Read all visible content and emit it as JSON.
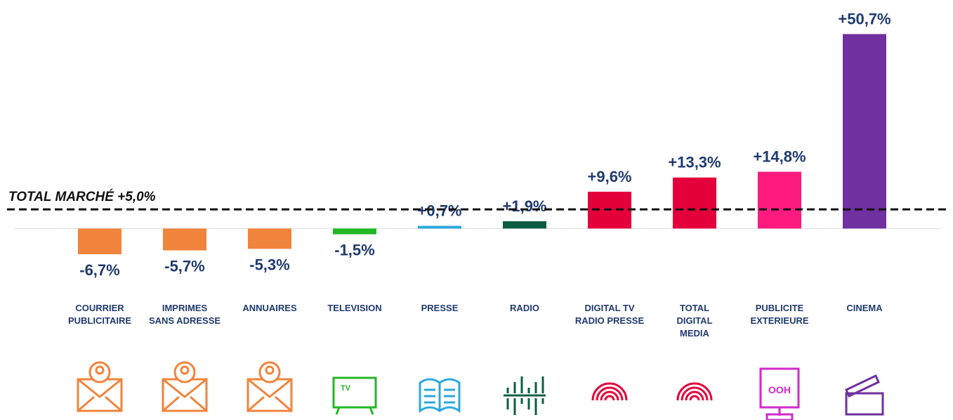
{
  "chart_data": {
    "type": "bar",
    "categories": [
      "COURRIER\nPUBLICITAIRE",
      "IMPRIMES\nSANS ADRESSE",
      "ANNUAIRES",
      "TELEVISION",
      "PRESSE",
      "RADIO",
      "DIGITAL TV\nRADIO PRESSE",
      "TOTAL\nDIGITAL\nMEDIA",
      "PUBLICITE\nEXTERIEURE",
      "CINEMA"
    ],
    "values": [
      -6.7,
      -5.7,
      -5.3,
      -1.5,
      0.7,
      1.9,
      9.6,
      13.3,
      14.8,
      50.7
    ],
    "value_labels": [
      "-6,7%",
      "-5,7%",
      "-5,3%",
      "-1,5%",
      "+0,7%",
      "+1,9%",
      "+9,6%",
      "+13,3%",
      "+14,8%",
      "+50,7%"
    ],
    "colors": [
      "#f0843c",
      "#f0843c",
      "#f0843c",
      "#22b822",
      "#29a8e0",
      "#0b5e43",
      "#e4003a",
      "#e4003a",
      "#ff1a7f",
      "#7030a0"
    ],
    "ylim": [
      -10,
      55
    ],
    "reference_line": {
      "value": 5.0,
      "label": "TOTAL MARCHÉ +5,0%"
    },
    "icon_texts": [
      "TV",
      "OOH"
    ]
  }
}
